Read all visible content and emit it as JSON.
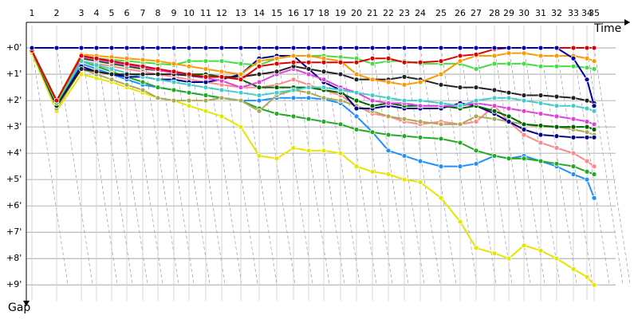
{
  "chart_data": {
    "type": "line",
    "x_label": "Time",
    "y_label": "Gap",
    "x": [
      7,
      38,
      69,
      88,
      107,
      126,
      146,
      165,
      185,
      204,
      225,
      245,
      269,
      292,
      314,
      335,
      354,
      373,
      394,
      414,
      434,
      454,
      474,
      494,
      520,
      544,
      564,
      587,
      605,
      624,
      645,
      665,
      686,
      703,
      712
    ],
    "xlim": [
      0,
      760
    ],
    "xticks": [
      {
        "value": 7,
        "label": "1"
      },
      {
        "value": 38,
        "label": "2"
      },
      {
        "value": 69,
        "label": "3"
      },
      {
        "value": 88,
        "label": "4"
      },
      {
        "value": 107,
        "label": "5"
      },
      {
        "value": 126,
        "label": "6"
      },
      {
        "value": 146,
        "label": "7"
      },
      {
        "value": 165,
        "label": "8"
      },
      {
        "value": 185,
        "label": "9"
      },
      {
        "value": 204,
        "label": "10"
      },
      {
        "value": 225,
        "label": "11"
      },
      {
        "value": 245,
        "label": "12"
      },
      {
        "value": 269,
        "label": "13"
      },
      {
        "value": 292,
        "label": "14"
      },
      {
        "value": 314,
        "label": "15"
      },
      {
        "value": 335,
        "label": "16"
      },
      {
        "value": 354,
        "label": "17"
      },
      {
        "value": 373,
        "label": "18"
      },
      {
        "value": 394,
        "label": "19"
      },
      {
        "value": 414,
        "label": "20"
      },
      {
        "value": 434,
        "label": "21"
      },
      {
        "value": 454,
        "label": "22"
      },
      {
        "value": 474,
        "label": "23"
      },
      {
        "value": 494,
        "label": "24"
      },
      {
        "value": 520,
        "label": "25"
      },
      {
        "value": 544,
        "label": "26"
      },
      {
        "value": 564,
        "label": "27"
      },
      {
        "value": 587,
        "label": "28"
      },
      {
        "value": 605,
        "label": "29"
      },
      {
        "value": 624,
        "label": "30"
      },
      {
        "value": 645,
        "label": "31"
      },
      {
        "value": 665,
        "label": "32"
      },
      {
        "value": 686,
        "label": "33"
      },
      {
        "value": 703,
        "label": "34"
      },
      {
        "value": 712,
        "label": "35"
      }
    ],
    "ylim": [
      -0.85,
      9.6
    ],
    "yticks": [
      {
        "value": 0,
        "label": "+0'"
      },
      {
        "value": 1,
        "label": "+1'"
      },
      {
        "value": 2,
        "label": "+2'"
      },
      {
        "value": 3,
        "label": "+3'"
      },
      {
        "value": 4,
        "label": "+4'"
      },
      {
        "value": 5,
        "label": "+5'"
      },
      {
        "value": 6,
        "label": "+6'"
      },
      {
        "value": 7,
        "label": "+7'"
      },
      {
        "value": 8,
        "label": "+8'"
      },
      {
        "value": 9,
        "label": "+9'"
      }
    ],
    "y_inverted": true,
    "grid": true,
    "series": [
      {
        "color": "#e6e600",
        "values": [
          0.2,
          2.4,
          1.0,
          1.15,
          1.3,
          1.5,
          1.7,
          1.9,
          2.0,
          2.2,
          2.4,
          2.6,
          3.0,
          4.1,
          4.2,
          3.8,
          3.9,
          3.9,
          4.0,
          4.5,
          4.7,
          4.8,
          5.0,
          5.1,
          5.7,
          6.6,
          7.6,
          7.8,
          8.0,
          7.5,
          7.7,
          8.0,
          8.4,
          8.7,
          9.0
        ]
      },
      {
        "color": "#1e90ff",
        "values": [
          0.1,
          2.1,
          0.6,
          0.8,
          1.0,
          1.2,
          1.4,
          1.5,
          1.6,
          1.7,
          1.8,
          1.9,
          2.0,
          2.0,
          1.9,
          1.9,
          1.9,
          1.95,
          2.1,
          2.6,
          3.2,
          3.9,
          4.1,
          4.3,
          4.5,
          4.5,
          4.4,
          4.1,
          4.2,
          4.1,
          4.3,
          4.5,
          4.8,
          5.0,
          5.7
        ]
      },
      {
        "color": "#22aa22",
        "values": [
          0.1,
          2.1,
          0.5,
          0.7,
          0.9,
          1.1,
          1.3,
          1.5,
          1.6,
          1.7,
          1.8,
          1.9,
          2.0,
          2.3,
          2.5,
          2.6,
          2.7,
          2.8,
          2.9,
          3.1,
          3.2,
          3.3,
          3.35,
          3.4,
          3.45,
          3.6,
          3.9,
          4.1,
          4.2,
          4.2,
          4.3,
          4.4,
          4.5,
          4.7,
          4.8
        ]
      },
      {
        "color": "#ff8888",
        "values": [
          0.1,
          2.1,
          0.5,
          0.6,
          0.7,
          0.8,
          0.9,
          1.0,
          1.1,
          1.2,
          1.3,
          1.4,
          1.5,
          1.5,
          1.4,
          1.2,
          1.4,
          1.6,
          1.8,
          2.2,
          2.5,
          2.6,
          2.8,
          2.9,
          2.8,
          2.9,
          2.8,
          2.2,
          2.8,
          3.3,
          3.6,
          3.8,
          4.0,
          4.3,
          4.5
        ]
      },
      {
        "color": "#aaaa55",
        "values": [
          0.1,
          2.3,
          0.8,
          1.0,
          1.2,
          1.4,
          1.6,
          1.9,
          2.0,
          2.0,
          2.0,
          1.9,
          2.0,
          2.4,
          1.8,
          1.6,
          1.7,
          1.9,
          2.0,
          2.2,
          2.4,
          2.6,
          2.7,
          2.8,
          2.9,
          2.9,
          2.6,
          2.7,
          2.8,
          2.9,
          3.0,
          3.0,
          3.1,
          3.2,
          3.3
        ]
      },
      {
        "color": "#000088",
        "values": [
          0.1,
          2.2,
          0.7,
          0.9,
          1.0,
          1.1,
          1.1,
          1.2,
          1.2,
          1.3,
          1.3,
          1.2,
          1.0,
          0.4,
          0.3,
          0.3,
          0.8,
          1.3,
          1.6,
          2.3,
          2.3,
          2.2,
          2.3,
          2.3,
          2.3,
          2.1,
          2.2,
          2.5,
          2.8,
          3.1,
          3.3,
          3.35,
          3.4,
          3.4,
          3.4
        ]
      },
      {
        "color": "#006600",
        "values": [
          0.1,
          2.1,
          0.4,
          0.5,
          0.6,
          0.7,
          0.8,
          0.85,
          0.9,
          1.0,
          1.0,
          1.1,
          1.2,
          1.5,
          1.5,
          1.5,
          1.5,
          1.6,
          1.7,
          2.0,
          2.2,
          2.1,
          2.2,
          2.2,
          2.2,
          2.3,
          2.2,
          2.4,
          2.6,
          2.9,
          2.95,
          3.0,
          3.0,
          3.0,
          3.1
        ]
      },
      {
        "color": "#dd44dd",
        "values": [
          0.1,
          2.1,
          0.35,
          0.45,
          0.55,
          0.65,
          0.75,
          0.85,
          0.95,
          1.05,
          1.15,
          1.25,
          1.5,
          1.3,
          1.0,
          0.8,
          1.0,
          1.2,
          1.5,
          1.7,
          2.0,
          2.1,
          2.1,
          2.2,
          2.2,
          2.2,
          2.1,
          2.2,
          2.3,
          2.4,
          2.5,
          2.6,
          2.7,
          2.8,
          2.9
        ]
      },
      {
        "color": "#44cccc",
        "values": [
          0.1,
          2.1,
          0.5,
          0.65,
          0.8,
          0.95,
          1.1,
          1.2,
          1.3,
          1.4,
          1.5,
          1.6,
          1.7,
          1.8,
          1.7,
          1.6,
          1.5,
          1.5,
          1.6,
          1.7,
          1.8,
          1.9,
          2.0,
          2.0,
          2.1,
          2.2,
          2.0,
          1.9,
          1.9,
          2.0,
          2.1,
          2.2,
          2.2,
          2.3,
          2.4
        ]
      },
      {
        "color": "#222222",
        "values": [
          0.1,
          2.2,
          0.8,
          0.9,
          1.0,
          1.0,
          1.0,
          1.0,
          1.0,
          1.05,
          1.1,
          1.1,
          1.1,
          1.0,
          0.9,
          0.7,
          0.8,
          0.9,
          1.0,
          1.2,
          1.2,
          1.2,
          1.1,
          1.2,
          1.4,
          1.5,
          1.5,
          1.6,
          1.7,
          1.8,
          1.8,
          1.85,
          1.9,
          2.0,
          2.1
        ]
      },
      {
        "color": "#44dd44",
        "values": [
          0.1,
          2.1,
          0.3,
          0.4,
          0.45,
          0.5,
          0.55,
          0.6,
          0.65,
          0.5,
          0.5,
          0.5,
          0.6,
          0.65,
          0.4,
          0.3,
          0.3,
          0.3,
          0.35,
          0.4,
          0.6,
          0.5,
          0.5,
          0.6,
          0.6,
          0.6,
          0.8,
          0.6,
          0.6,
          0.6,
          0.7,
          0.7,
          0.7,
          0.75,
          0.8
        ]
      },
      {
        "color": "#ff9900",
        "values": [
          0.1,
          2.0,
          0.25,
          0.3,
          0.35,
          0.4,
          0.45,
          0.5,
          0.6,
          0.7,
          0.8,
          0.9,
          1.0,
          0.5,
          0.4,
          0.3,
          0.3,
          0.4,
          0.5,
          1.0,
          1.2,
          1.3,
          1.4,
          1.3,
          1.0,
          0.5,
          0.3,
          0.3,
          0.2,
          0.2,
          0.3,
          0.3,
          0.3,
          0.4,
          0.5
        ]
      },
      {
        "color": "#dd0000",
        "values": [
          0.1,
          2.0,
          0.3,
          0.4,
          0.5,
          0.6,
          0.7,
          0.8,
          0.9,
          1.0,
          1.1,
          1.1,
          1.2,
          0.7,
          0.6,
          0.55,
          0.55,
          0.55,
          0.55,
          0.55,
          0.4,
          0.4,
          0.55,
          0.55,
          0.5,
          0.3,
          0.25,
          0.05,
          0,
          0,
          0,
          0,
          0,
          0,
          0
        ]
      },
      {
        "color": "#0000aa",
        "values": [
          0,
          0,
          0,
          0,
          0,
          0,
          0,
          0,
          0,
          0,
          0,
          0,
          0,
          0,
          0,
          0,
          0,
          0,
          0,
          0,
          0,
          0,
          0,
          0,
          0,
          0,
          0,
          0,
          0,
          0,
          0,
          0,
          0.4,
          1.2,
          2.2
        ]
      }
    ]
  }
}
